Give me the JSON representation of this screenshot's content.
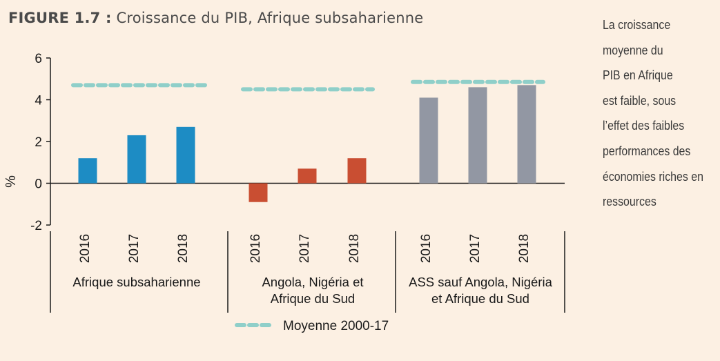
{
  "title": {
    "figure_label": "FIGURE 1.7 :",
    "text": "Croissance du PIB, Afrique subsaharienne"
  },
  "side_note": {
    "lines": [
      "La croissance",
      "moyenne du",
      "PIB en Afrique",
      "est faible, sous",
      "l’effet des faibles",
      "performances des",
      "économies riches en",
      "ressources"
    ]
  },
  "chart_data": {
    "type": "bar",
    "ylabel": "%",
    "ylim": [
      -2,
      6
    ],
    "yticks": [
      "6",
      "4",
      "2",
      "0",
      "-2"
    ],
    "groups": [
      {
        "label_lines": [
          "Afrique subsaharienne"
        ],
        "color": "#1d8cc4",
        "categories": [
          "2016",
          "2017",
          "2018"
        ],
        "values": [
          1.2,
          2.3,
          2.7
        ],
        "average": 4.7
      },
      {
        "label_lines": [
          "Angola, Nigéria et",
          "Afrique du Sud"
        ],
        "color": "#c94e32",
        "categories": [
          "2016",
          "2017",
          "2018"
        ],
        "values": [
          -0.9,
          0.7,
          1.2
        ],
        "average": 4.5
      },
      {
        "label_lines": [
          "ASS sauf Angola, Nigéria",
          "et Afrique du Sud"
        ],
        "color": "#9297a3",
        "categories": [
          "2016",
          "2017",
          "2018"
        ],
        "values": [
          4.1,
          4.6,
          4.7
        ],
        "average": 4.85
      }
    ],
    "average_series": {
      "name": "Moyenne 2000-17",
      "color": "#8fcfc9"
    },
    "legend": "bottom-center",
    "grid": false
  }
}
